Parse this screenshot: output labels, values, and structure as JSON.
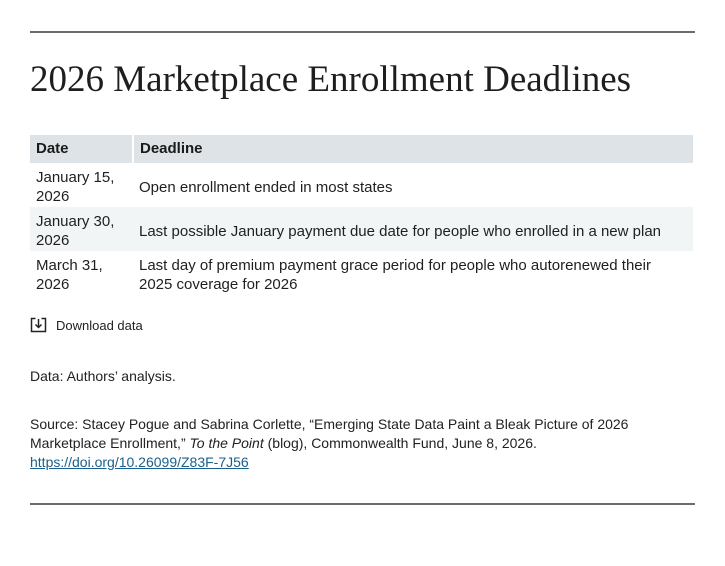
{
  "title": "2026 Marketplace Enrollment Deadlines",
  "table": {
    "headers": [
      "Date",
      "Deadline"
    ],
    "rows": [
      {
        "date": "January 15, 2026",
        "deadline": "Open enrollment ended in most states"
      },
      {
        "date": "January 30, 2026",
        "deadline": "Last possible January payment due date for people who enrolled in a new plan"
      },
      {
        "date": "March 31, 2026",
        "deadline": "Last day of premium payment grace period for people who autorenewed their 2025 coverage for 2026"
      }
    ]
  },
  "download": {
    "label": "Download data",
    "icon": "download-icon"
  },
  "note": "Data: Authors’ analysis.",
  "source": {
    "prefix": "Source: Stacey Pogue and Sabrina Corlette, “Emerging State Data Paint a Bleak Picture of 2026 Marketplace Enrollment,”",
    "publication": "To the Point",
    "suffix": "(blog), Commonwealth Fund, June 8, 2026.",
    "link": "https://doi.org/10.26099/Z83F-7J56"
  },
  "colors": {
    "header_bg": "#dde3e6",
    "alt_row_bg": "#f2f5f6",
    "link": "#1b5f8c",
    "rule": "#6b6b6b"
  }
}
